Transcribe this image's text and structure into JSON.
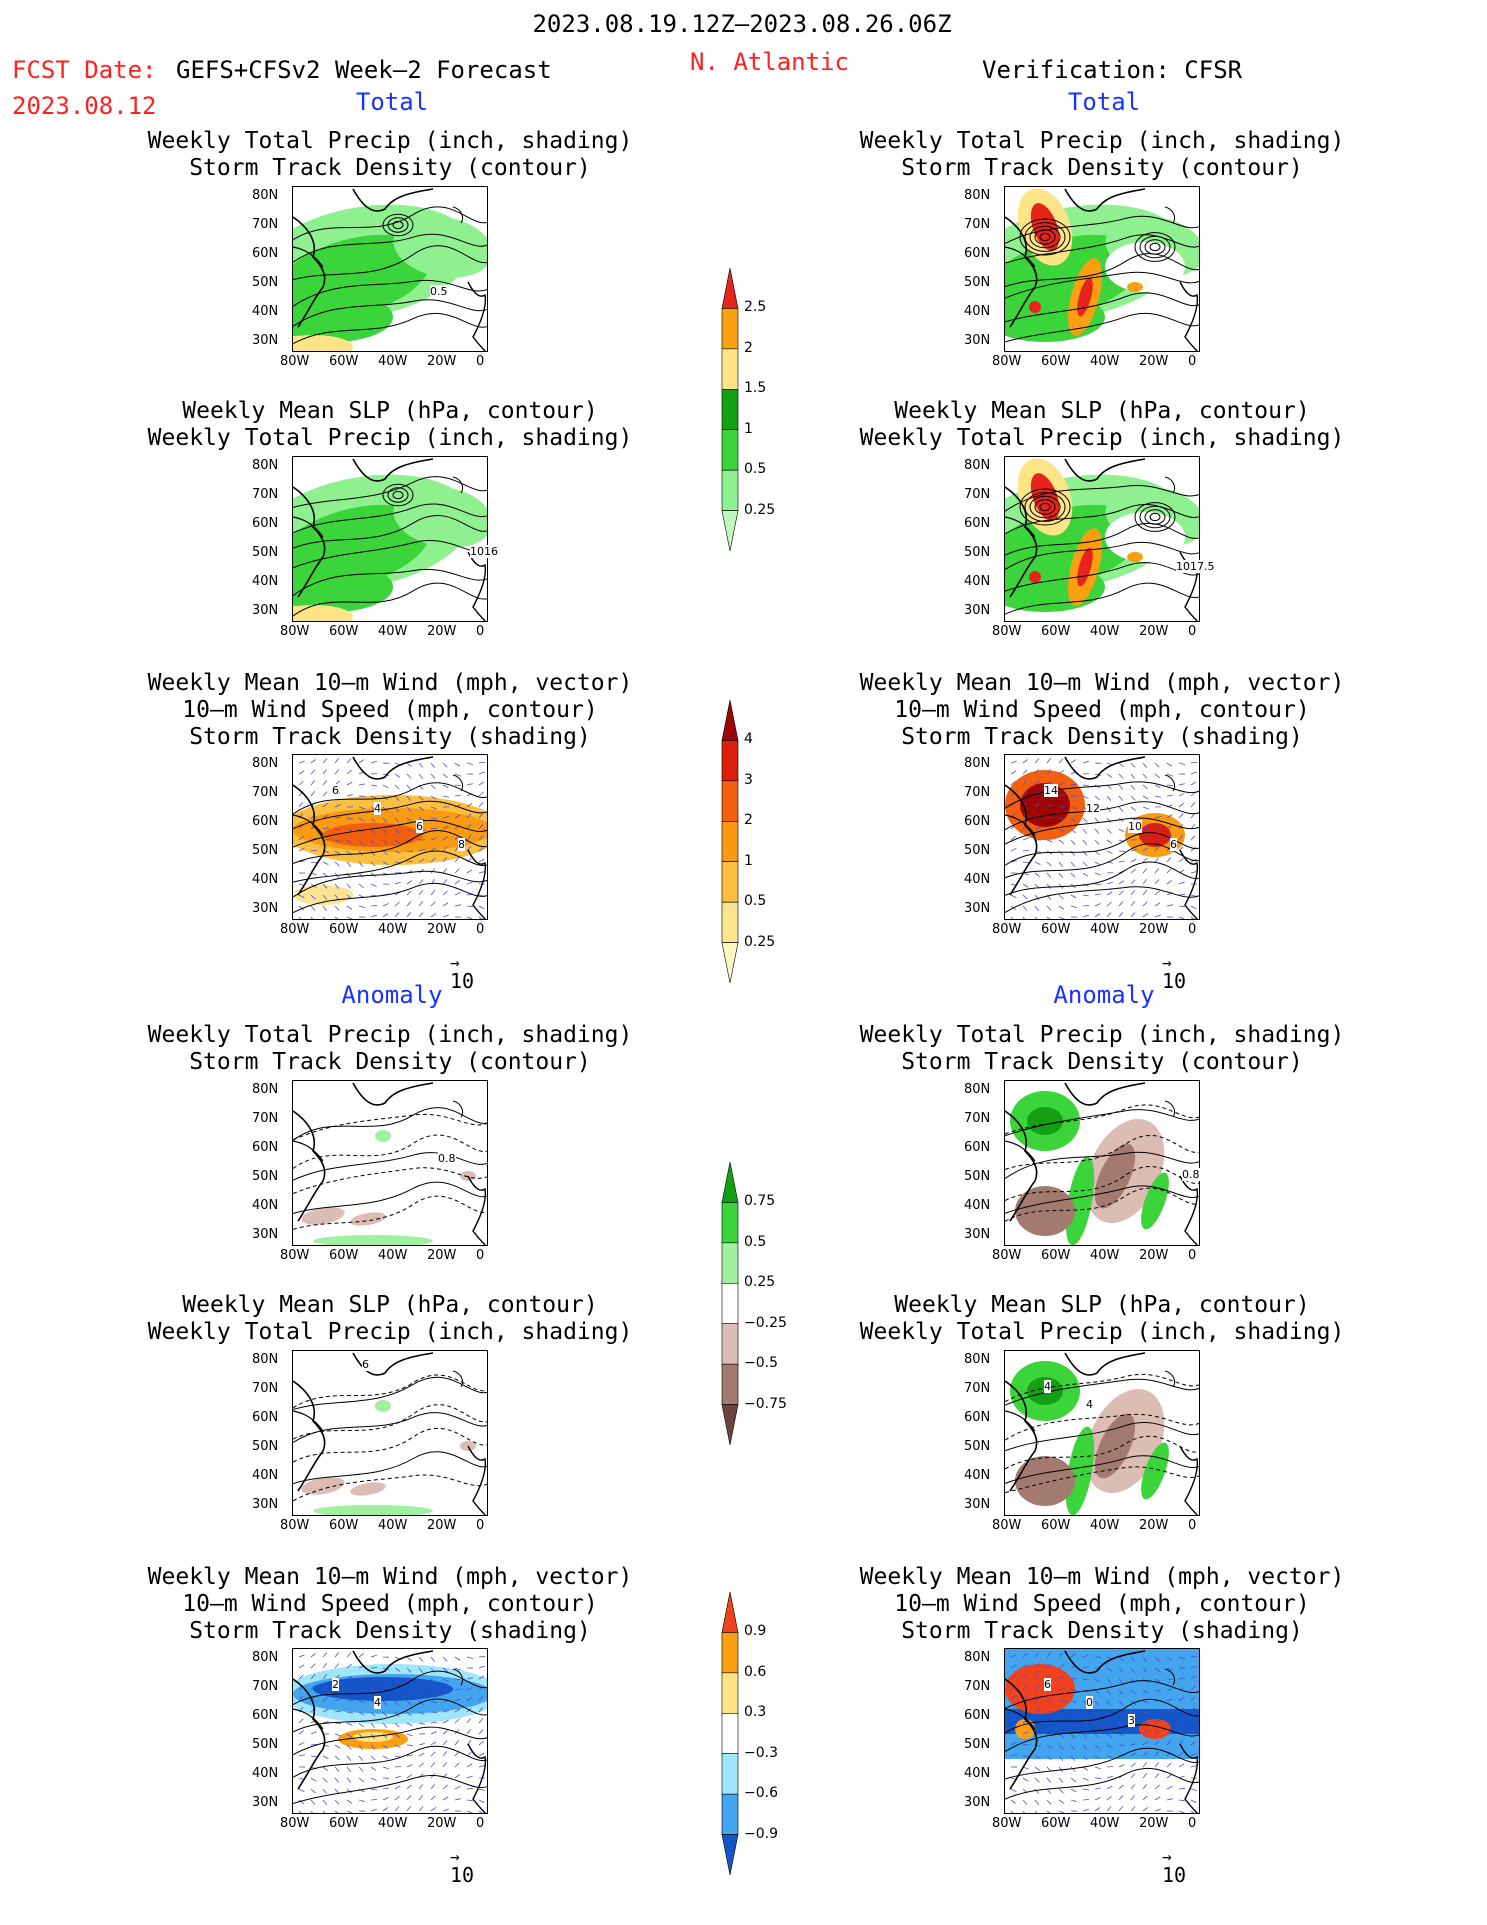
{
  "header": {
    "period": "2023.08.19.12Z—2023.08.26.06Z",
    "fcst_label": "FCST Date:",
    "model": "GEFS+CFSv2 Week—2 Forecast",
    "region": "N. Atlantic",
    "verification": "Verification: CFSR",
    "fcst_date": "2023.08.12"
  },
  "sections": {
    "total": "Total",
    "anomaly": "Anomaly"
  },
  "panel_titles": {
    "precip_storm": [
      "Weekly Total Precip (inch, shading)",
      "Storm Track Density (contour)"
    ],
    "slp_precip": [
      "Weekly Mean SLP (hPa, contour)",
      "Weekly Total Precip (inch, shading)"
    ],
    "wind_storm": [
      "Weekly Mean 10—m Wind (mph, vector)",
      "10—m Wind Speed (mph, contour)",
      "Storm Track Density (shading)"
    ]
  },
  "axes": {
    "lat_labels": [
      "80N",
      "70N",
      "60N",
      "50N",
      "40N",
      "30N"
    ],
    "lon_labels": [
      "80W",
      "60W",
      "40W",
      "20W",
      "0"
    ]
  },
  "vector_scale": "10",
  "contour_labels": {
    "fcst_total_precip": "0.5",
    "fcst_total_slp": "1016",
    "verif_total_slp": "1017.5",
    "fcst_total_wind": [
      "6",
      "4",
      "6",
      "8"
    ],
    "verif_total_wind": [
      "14",
      "12",
      "10",
      "6"
    ],
    "fcst_anom_precip": "0.8",
    "verif_anom_precip": "0.8",
    "fcst_anom_slp": "6",
    "verif_anom_slp": [
      "4",
      "4"
    ],
    "fcst_anom_wind": [
      "2",
      "4"
    ],
    "verif_anom_wind": [
      "6",
      "0",
      "3"
    ]
  },
  "colorbars": {
    "precip_total": {
      "labels": [
        "2.5",
        "2",
        "1.5",
        "1",
        "0.5",
        "0.25"
      ],
      "colors": [
        "#e8231b",
        "#fb9f12",
        "#fde487",
        "#13a013",
        "#3bd43b",
        "#8ff08f",
        "#bff7bf"
      ]
    },
    "storm_total": {
      "labels": [
        "4",
        "3",
        "2",
        "1",
        "0.5",
        "0.25"
      ],
      "colors": [
        "#9e0505",
        "#dc1e0c",
        "#f2600f",
        "#f99b12",
        "#fcc040",
        "#fde490",
        "#fff5c2"
      ]
    },
    "precip_anom": {
      "labels": [
        "0.75",
        "0.5",
        "0.25",
        "−0.25",
        "−0.5",
        "−0.75"
      ],
      "colors": [
        "#13a013",
        "#3bd43b",
        "#9ff09f",
        "#ffffff",
        "#dcbdb3",
        "#a37a70",
        "#6b453c"
      ]
    },
    "storm_anom": {
      "labels": [
        "0.9",
        "0.6",
        "0.3",
        "−0.3",
        "−0.6",
        "−0.9"
      ],
      "colors": [
        "#f0421c",
        "#fb9f12",
        "#fde487",
        "#ffffff",
        "#9fe6fb",
        "#43a5ee",
        "#1456c8"
      ]
    }
  }
}
